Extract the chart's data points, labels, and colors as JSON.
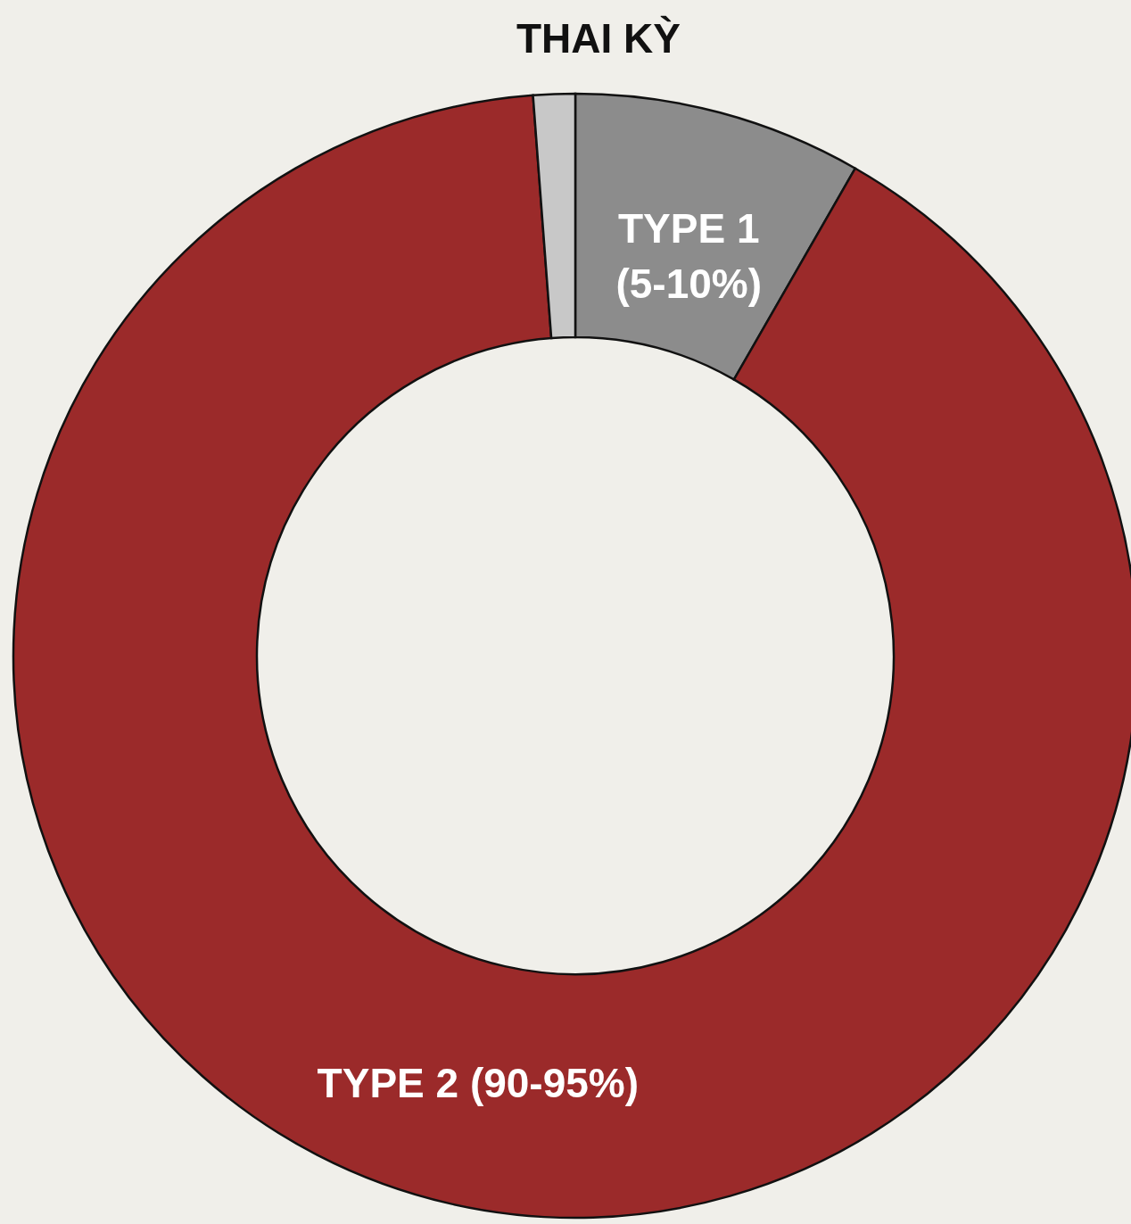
{
  "chart_data": {
    "type": "donut",
    "categories": [
      "TYPE 1 (5-10%)",
      "TYPE 2 (90-95%)",
      "THAI KỲ"
    ],
    "values": [
      8.3,
      90.5,
      1.2
    ],
    "colors": [
      "#8c8c8c",
      "#9b2a2a",
      "#c8c8c8"
    ]
  }
}
